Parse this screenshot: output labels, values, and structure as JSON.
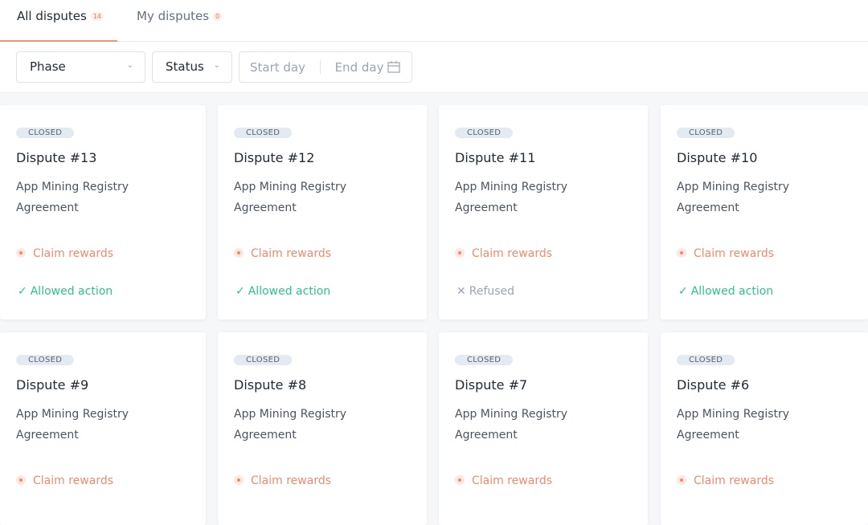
{
  "tabs": [
    {
      "label": "All disputes",
      "count": "14",
      "active": true
    },
    {
      "label": "My disputes",
      "count": "0",
      "active": false
    }
  ],
  "filters": {
    "phase": "Phase",
    "status": "Status",
    "start_day": "Start day",
    "end_day": "End day"
  },
  "colors": {
    "accent": "#f08a6c",
    "success": "#2ec28c",
    "muted": "#9aa5b1"
  },
  "cards": [
    {
      "badge": "CLOSED",
      "title": "Dispute #13",
      "desc": "App Mining Registry Agreement",
      "action": "Claim rewards",
      "result": "Allowed action",
      "result_type": "allowed"
    },
    {
      "badge": "CLOSED",
      "title": "Dispute #12",
      "desc": "App Mining Registry Agreement",
      "action": "Claim rewards",
      "result": "Allowed action",
      "result_type": "allowed"
    },
    {
      "badge": "CLOSED",
      "title": "Dispute #11",
      "desc": "App Mining Registry Agreement",
      "action": "Claim rewards",
      "result": "Refused",
      "result_type": "refused"
    },
    {
      "badge": "CLOSED",
      "title": "Dispute #10",
      "desc": "App Mining Registry Agreement",
      "action": "Claim rewards",
      "result": "Allowed action",
      "result_type": "allowed"
    },
    {
      "badge": "CLOSED",
      "title": "Dispute #9",
      "desc": "App Mining Registry Agreement",
      "action": "Claim rewards"
    },
    {
      "badge": "CLOSED",
      "title": "Dispute #8",
      "desc": "App Mining Registry Agreement",
      "action": "Claim rewards"
    },
    {
      "badge": "CLOSED",
      "title": "Dispute #7",
      "desc": "App Mining Registry Agreement",
      "action": "Claim rewards"
    },
    {
      "badge": "CLOSED",
      "title": "Dispute #6",
      "desc": "App Mining Registry Agreement",
      "action": "Claim rewards"
    }
  ]
}
